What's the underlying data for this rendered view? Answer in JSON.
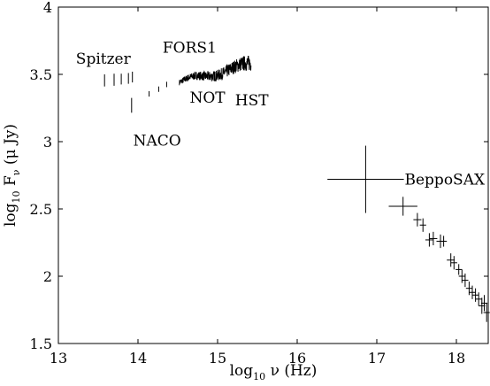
{
  "chart_data": {
    "type": "scatter",
    "xlabel": {
      "prefix": "log",
      "sub": "10",
      "rest": " ν (Hz)"
    },
    "ylabel": {
      "prefix": "log",
      "sub": "10",
      "mid": " F",
      "sub2": "ν",
      "rest": " (μ Jy)"
    },
    "xlim": [
      13,
      18.4
    ],
    "ylim": [
      1.5,
      4
    ],
    "xticks": [
      13,
      14,
      15,
      16,
      17,
      18
    ],
    "yticks": [
      1.5,
      2,
      2.5,
      3,
      3.5,
      4
    ],
    "xtick_labels": [
      "13",
      "14",
      "15",
      "16",
      "17",
      "18"
    ],
    "ytick_labels": [
      "1.5",
      "2",
      "2.5",
      "3",
      "3.5",
      "4"
    ],
    "grid": false,
    "annotations": [
      {
        "text": "Spitzer",
        "x": 13.22,
        "y": 3.58
      },
      {
        "text": "FORS1",
        "x": 14.31,
        "y": 3.66
      },
      {
        "text": "NOT",
        "x": 14.65,
        "y": 3.29
      },
      {
        "text": "HST",
        "x": 15.22,
        "y": 3.27
      },
      {
        "text": "NACO",
        "x": 13.94,
        "y": 2.97
      },
      {
        "text": "BeppoSAX",
        "x": 17.35,
        "y": 2.68
      }
    ],
    "series": [
      {
        "points": [
          {
            "x": 13.58,
            "y": 3.455,
            "yerr": 0.045
          },
          {
            "x": 13.7,
            "y": 3.46,
            "yerr": 0.045
          },
          {
            "x": 13.79,
            "y": 3.465,
            "yerr": 0.04
          },
          {
            "x": 13.88,
            "y": 3.47,
            "yerr": 0.04
          },
          {
            "x": 13.93,
            "y": 3.48,
            "yerr": 0.04
          },
          {
            "x": 13.92,
            "y": 3.27,
            "yerr": 0.055
          },
          {
            "x": 14.14,
            "y": 3.355,
            "yerr": 0.02
          },
          {
            "x": 14.26,
            "y": 3.39,
            "yerr": 0.02
          },
          {
            "x": 14.36,
            "y": 3.425,
            "yerr": 0.02
          }
        ]
      },
      {
        "spectrum": {
          "x_start": 14.52,
          "x_end": 15.42,
          "y_start": 3.44,
          "y_end": 3.575,
          "noise": 0.06
        }
      },
      {
        "points": [
          {
            "x": 16.86,
            "xerr": 0.48,
            "y": 2.72,
            "yerr": 0.25
          },
          {
            "x": 17.33,
            "xerr": 0.18,
            "y": 2.52,
            "yerr": 0.07
          },
          {
            "x": 17.51,
            "xerr": 0.05,
            "y": 2.42,
            "yerr": 0.05
          },
          {
            "x": 17.58,
            "xerr": 0.04,
            "y": 2.38,
            "yerr": 0.05
          },
          {
            "x": 17.66,
            "xerr": 0.05,
            "y": 2.27,
            "yerr": 0.05
          },
          {
            "x": 17.71,
            "xerr": 0.05,
            "y": 2.28,
            "yerr": 0.05
          },
          {
            "x": 17.8,
            "xerr": 0.05,
            "y": 2.26,
            "yerr": 0.05
          },
          {
            "x": 17.84,
            "xerr": 0.04,
            "y": 2.26,
            "yerr": 0.04
          },
          {
            "x": 17.93,
            "xerr": 0.05,
            "y": 2.12,
            "yerr": 0.05
          },
          {
            "x": 17.97,
            "xerr": 0.04,
            "y": 2.1,
            "yerr": 0.05
          },
          {
            "x": 18.03,
            "xerr": 0.04,
            "y": 2.05,
            "yerr": 0.04
          },
          {
            "x": 18.07,
            "xerr": 0.04,
            "y": 2.0,
            "yerr": 0.05
          },
          {
            "x": 18.11,
            "xerr": 0.04,
            "y": 1.97,
            "yerr": 0.05
          },
          {
            "x": 18.16,
            "xerr": 0.04,
            "y": 1.91,
            "yerr": 0.05
          },
          {
            "x": 18.2,
            "xerr": 0.04,
            "y": 1.88,
            "yerr": 0.05
          },
          {
            "x": 18.24,
            "xerr": 0.04,
            "y": 1.86,
            "yerr": 0.05
          },
          {
            "x": 18.28,
            "xerr": 0.04,
            "y": 1.83,
            "yerr": 0.05
          },
          {
            "x": 18.32,
            "xerr": 0.04,
            "y": 1.78,
            "yerr": 0.06
          },
          {
            "x": 18.35,
            "xerr": 0.04,
            "y": 1.8,
            "yerr": 0.06
          },
          {
            "x": 18.38,
            "xerr": 0.04,
            "y": 1.73,
            "yerr": 0.07
          }
        ]
      }
    ],
    "colors": {
      "ink": "#000000",
      "background": "#ffffff"
    }
  }
}
